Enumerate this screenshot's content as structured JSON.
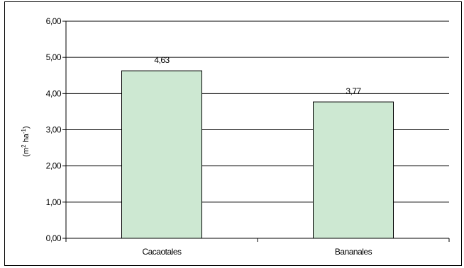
{
  "chart_data": {
    "type": "bar",
    "title": "",
    "xlabel": "",
    "ylabel_parts": [
      "(m",
      "2",
      " ha",
      "-1",
      ")"
    ],
    "categories": [
      "Cacaotales",
      "Bananales"
    ],
    "values": [
      4.63,
      3.77
    ],
    "value_labels": [
      "4,63",
      "3,77"
    ],
    "ylim": [
      0,
      6
    ],
    "yticks": [
      "0,00",
      "1,00",
      "2,00",
      "3,00",
      "4,00",
      "5,00",
      "6,00"
    ],
    "grid": true,
    "legend": "none",
    "colors": {
      "bar_fill": "#cde8d2",
      "bar_stroke": "#000000",
      "grid": "#000000"
    }
  }
}
